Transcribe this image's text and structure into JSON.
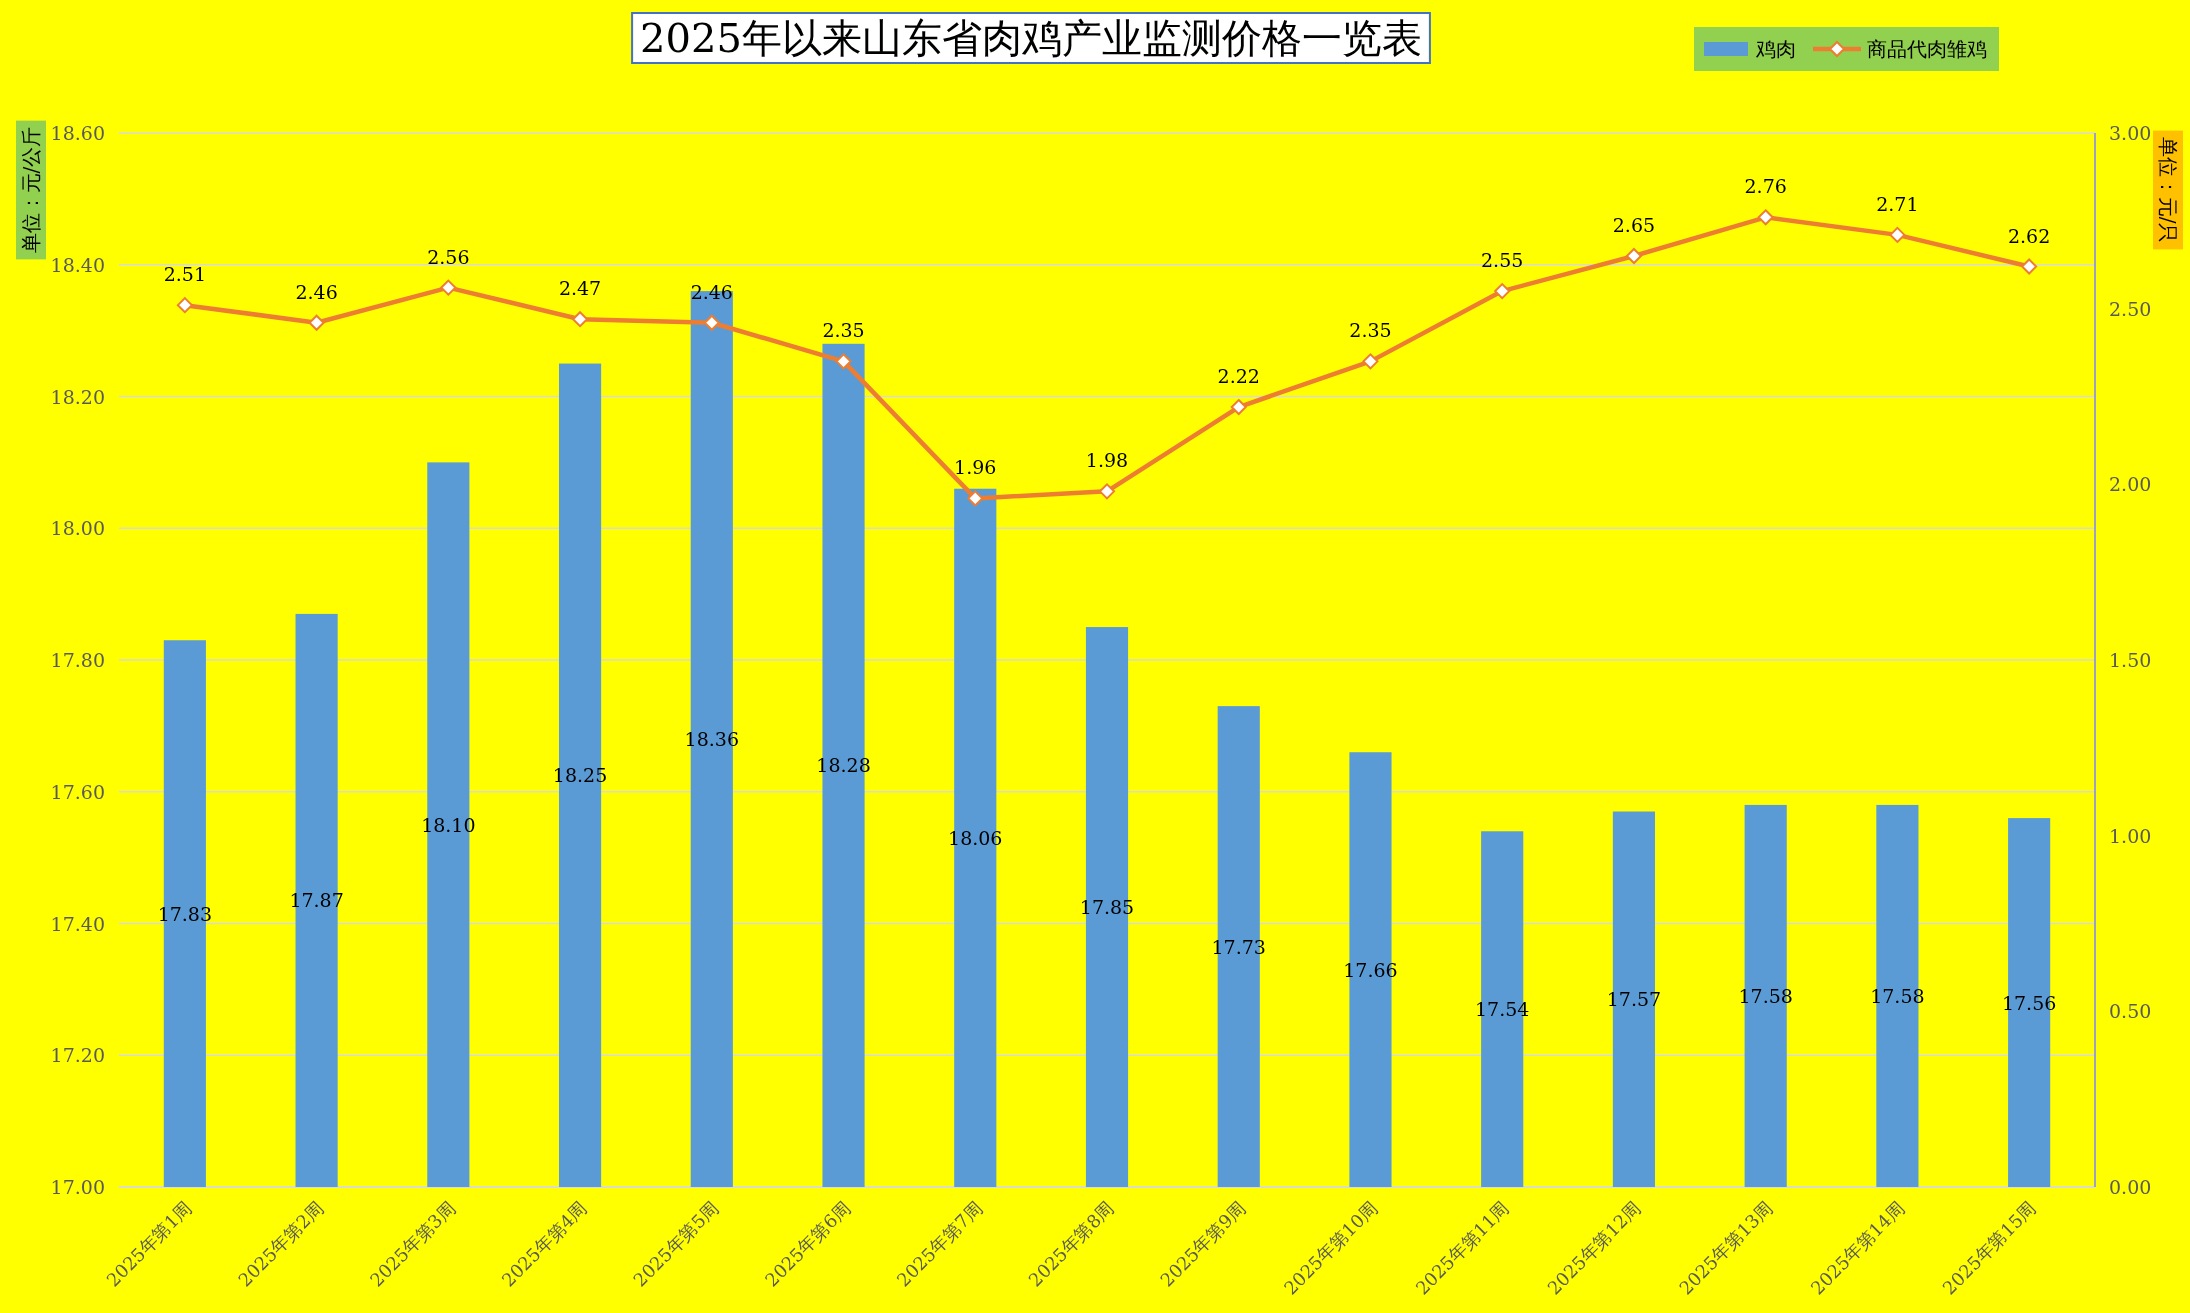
{
  "chart_data": {
    "type": "bar",
    "title": "2025年以来山东省肉鸡产业监测价格一览表",
    "ylabel": "单位：元/公斤",
    "y2label": "单位：元/只",
    "categories": [
      "2025年第1周",
      "2025年第2周",
      "2025年第3周",
      "2025年第4周",
      "2025年第5周",
      "2025年第6周",
      "2025年第7周",
      "2025年第8周",
      "2025年第9周",
      "2025年第10周",
      "2025年第11周",
      "2025年第12周",
      "2025年第13周",
      "2025年第14周",
      "2025年第15周"
    ],
    "series": [
      {
        "name": "鸡肉",
        "color": "#5b9bd5",
        "values": [
          17.83,
          17.87,
          18.1,
          18.25,
          18.36,
          18.28,
          18.06,
          17.85,
          17.73,
          17.66,
          17.54,
          17.57,
          17.58,
          17.58,
          17.56
        ],
        "value_labels": [
          "17.83",
          "17.87",
          "18.10",
          "18.25",
          "18.36",
          "18.28",
          "18.06",
          "17.85",
          "17.73",
          "17.66",
          "17.54",
          "17.57",
          "17.58",
          "17.58",
          "17.56"
        ]
      },
      {
        "name": "商品代肉雏鸡",
        "type": "line",
        "axis": "y2",
        "color": "#ed7d31",
        "marker": "diamond",
        "values": [
          2.51,
          2.46,
          2.56,
          2.47,
          2.46,
          2.35,
          1.96,
          1.98,
          2.22,
          2.35,
          2.55,
          2.65,
          2.76,
          2.71,
          2.62
        ],
        "value_labels": [
          "2.51",
          "2.46",
          "2.56",
          "2.47",
          "2.46",
          "2.35",
          "1.96",
          "1.98",
          "2.22",
          "2.35",
          "2.55",
          "2.65",
          "2.76",
          "2.71",
          "2.62"
        ]
      }
    ],
    "ylim": [
      17,
      18.6
    ],
    "yticks": [
      {
        "value": 17,
        "label": "17.00"
      },
      {
        "value": 17.2,
        "label": "17.20"
      },
      {
        "value": 17.4,
        "label": "17.40"
      },
      {
        "value": 17.6,
        "label": "17.60"
      },
      {
        "value": 17.8,
        "label": "17.80"
      },
      {
        "value": 18,
        "label": "18.00"
      },
      {
        "value": 18.2,
        "label": "18.20"
      },
      {
        "value": 18.4,
        "label": "18.40"
      },
      {
        "value": 18.6,
        "label": "18.60"
      }
    ],
    "y2lim": [
      0,
      3
    ],
    "y2ticks": [
      {
        "value": 0,
        "label": "0.00"
      },
      {
        "value": 0.5,
        "label": "0.50"
      },
      {
        "value": 1,
        "label": "1.00"
      },
      {
        "value": 1.5,
        "label": "1.50"
      },
      {
        "value": 2,
        "label": "2.00"
      },
      {
        "value": 2.5,
        "label": "2.50"
      },
      {
        "value": 3,
        "label": "3.00"
      }
    ],
    "grid": "y",
    "legend": "top right"
  }
}
